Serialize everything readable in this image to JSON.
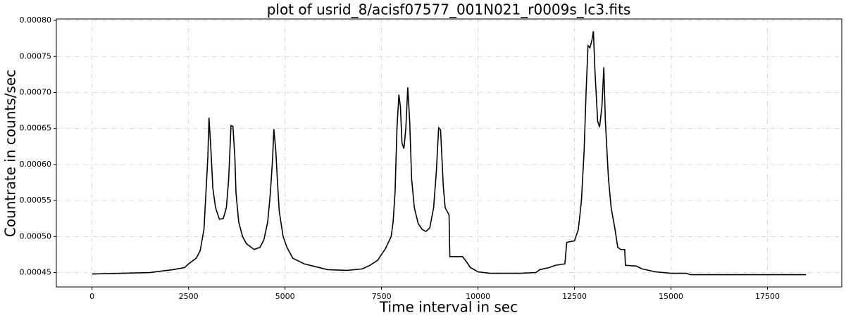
{
  "chart_data": {
    "type": "line",
    "title": "plot of usrid_8/acisf07577_001N021_r0009s_lc3.fits",
    "x_label": "Time interval in sec",
    "y_label": "Countrate in counts/sec",
    "x": [
      0,
      1500,
      1800,
      2100,
      2400,
      2500,
      2700,
      2800,
      2900,
      2950,
      3000,
      3030,
      3080,
      3130,
      3200,
      3300,
      3400,
      3480,
      3540,
      3600,
      3650,
      3700,
      3730,
      3800,
      3900,
      4000,
      4200,
      4350,
      4450,
      4550,
      4620,
      4680,
      4710,
      4760,
      4800,
      4850,
      4950,
      5050,
      5200,
      5500,
      5800,
      6100,
      6600,
      7000,
      7200,
      7400,
      7600,
      7750,
      7800,
      7850,
      7900,
      7950,
      7990,
      8030,
      8080,
      8130,
      8180,
      8230,
      8280,
      8350,
      8450,
      8550,
      8650,
      8750,
      8850,
      8920,
      8980,
      9030,
      9100,
      9150,
      9250,
      9270,
      9600,
      9700,
      9800,
      10000,
      10300,
      11100,
      11500,
      11600,
      11850,
      12000,
      12250,
      12300,
      12500,
      12600,
      12680,
      12750,
      12800,
      12850,
      12900,
      12950,
      12990,
      13030,
      13100,
      13150,
      13210,
      13260,
      13300,
      13380,
      13450,
      13550,
      13620,
      13700,
      13800,
      13820,
      14100,
      14250,
      14600,
      15000,
      15400,
      15500,
      18500
    ],
    "series": [
      {
        "name": "lc3",
        "color": "#000000",
        "values": [
          0.000448,
          0.00045,
          0.000452,
          0.000454,
          0.000457,
          0.000462,
          0.00047,
          0.00048,
          0.00051,
          0.00056,
          0.00061,
          0.000665,
          0.00062,
          0.000567,
          0.00054,
          0.000524,
          0.000525,
          0.00054,
          0.00058,
          0.000654,
          0.000653,
          0.00061,
          0.00056,
          0.00052,
          0.0005,
          0.00049,
          0.000482,
          0.000485,
          0.000495,
          0.00052,
          0.00056,
          0.00061,
          0.000649,
          0.00062,
          0.00058,
          0.000535,
          0.0005,
          0.000485,
          0.00047,
          0.000462,
          0.000458,
          0.000454,
          0.000453,
          0.000455,
          0.00046,
          0.000467,
          0.000483,
          0.0005,
          0.00052,
          0.00056,
          0.00065,
          0.000697,
          0.00068,
          0.00063,
          0.000622,
          0.00065,
          0.000707,
          0.00066,
          0.00058,
          0.00054,
          0.000518,
          0.00051,
          0.000507,
          0.000512,
          0.00054,
          0.00059,
          0.000651,
          0.000648,
          0.00057,
          0.00054,
          0.00053,
          0.000472,
          0.000472,
          0.000465,
          0.000457,
          0.000451,
          0.000449,
          0.000449,
          0.00045,
          0.000454,
          0.000457,
          0.00046,
          0.000462,
          0.000492,
          0.000494,
          0.00051,
          0.00055,
          0.00062,
          0.0007,
          0.000765,
          0.000762,
          0.000772,
          0.000785,
          0.00073,
          0.00066,
          0.000652,
          0.00068,
          0.000735,
          0.00066,
          0.00058,
          0.00054,
          0.00051,
          0.000485,
          0.000482,
          0.000482,
          0.00046,
          0.000459,
          0.000455,
          0.000451,
          0.000449,
          0.000449,
          0.000447,
          0.000447
        ]
      }
    ],
    "xlim": [
      -925,
      19425
    ],
    "ylim": [
      0.00043,
      0.000802
    ],
    "xticks": [
      0,
      2500,
      5000,
      7500,
      10000,
      12500,
      15000,
      17500
    ],
    "yticks": [
      0.00045,
      {
        "value": 0.0005,
        "label": "0.00050"
      },
      0.00055,
      {
        "value": 0.0006,
        "label": "0.00060"
      },
      0.00065,
      {
        "value": 0.0007,
        "label": "0.00070"
      },
      0.00075,
      {
        "value": 0.0008,
        "label": "0.00080"
      }
    ],
    "grid": true
  }
}
